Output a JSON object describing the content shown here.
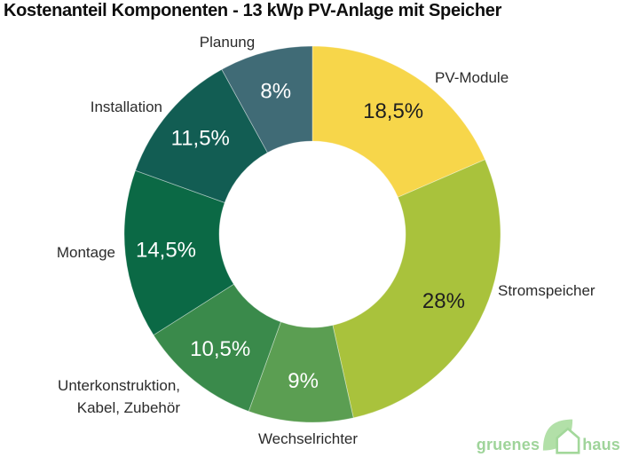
{
  "title": "Kostenanteil Komponenten - 13 kWp PV-Anlage mit Speicher",
  "chart_data": {
    "type": "pie",
    "subtype": "donut",
    "title": "Kostenanteil Komponenten - 13 kWp PV-Anlage mit Speicher",
    "unit": "%",
    "start_angle_deg": 0,
    "direction": "clockwise",
    "donut_hole_ratio": 0.5,
    "legend": "none",
    "segments": [
      {
        "name": "PV-Module",
        "value": 18.5,
        "pct_label": "18,5%",
        "color": "#F7D64A",
        "pct_color": "#1f1f1f"
      },
      {
        "name": "Stromspeicher",
        "value": 28,
        "pct_label": "28%",
        "color": "#A9C23C",
        "pct_color": "#1f1f1f"
      },
      {
        "name": "Wechselrichter",
        "value": 9,
        "pct_label": "9%",
        "color": "#5B9E52",
        "pct_color": "#ffffff"
      },
      {
        "name": "Unterkonstruktion,\nKabel, Zubehör",
        "value": 10.5,
        "pct_label": "10,5%",
        "color": "#3A8A4B",
        "pct_color": "#ffffff"
      },
      {
        "name": "Montage",
        "value": 14.5,
        "pct_label": "14,5%",
        "color": "#0B6945",
        "pct_color": "#ffffff"
      },
      {
        "name": "Installation",
        "value": 11.5,
        "pct_label": "11,5%",
        "color": "#125D53",
        "pct_color": "#ffffff"
      },
      {
        "name": "Planung",
        "value": 8,
        "pct_label": "8%",
        "color": "#406B76",
        "pct_color": "#ffffff"
      }
    ]
  },
  "logo": {
    "brand_left": "gruenes",
    "brand_right": "haus",
    "text_color": "#9fd49a",
    "leaf_fill": "#b2e0a8",
    "house_stroke": "#a3d89b",
    "icon": "leaf-house-icon"
  }
}
